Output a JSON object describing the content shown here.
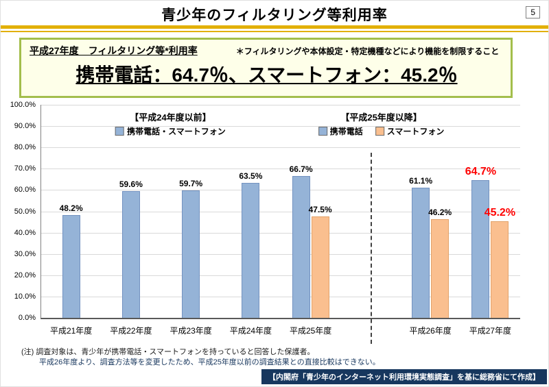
{
  "page": {
    "title": "青少年のフィルタリング等利用率",
    "page_number": "5"
  },
  "highlight_box": {
    "heading": "平成27年度　フィルタリング等*利用率",
    "note": "＊フィルタリングや本体設定・特定機種などにより機能を制限すること",
    "stat": "携帯電話：64.7％、スマートフォン：45.2％"
  },
  "chart_data": {
    "type": "bar",
    "title": "",
    "xlabel": "",
    "ylabel": "",
    "ylim": [
      0,
      100
    ],
    "grid": true,
    "y_ticks": [
      "0.0%",
      "10.0%",
      "20.0%",
      "30.0%",
      "40.0%",
      "50.0%",
      "60.0%",
      "70.0%",
      "80.0%",
      "90.0%",
      "100.0%"
    ],
    "categories": [
      "平成21年度",
      "平成22年度",
      "平成23年度",
      "平成24年度",
      "平成25年度",
      "平成26年度",
      "平成27年度"
    ],
    "series": [
      {
        "name": "携帯電話",
        "color": "#95B3D7",
        "border": "#7392C0",
        "values": [
          48.2,
          59.6,
          59.7,
          63.5,
          66.7,
          61.1,
          64.7
        ]
      },
      {
        "name": "スマートフォン",
        "color": "#FABF8F",
        "border": "#E2A269",
        "values": [
          null,
          null,
          null,
          null,
          47.5,
          46.2,
          45.2
        ]
      }
    ],
    "separator_after_index": 4,
    "highlight_category_index": 6,
    "highlight_color": "#FF0000",
    "legend_groups": [
      {
        "title": "【平成24年度以前】",
        "entries": [
          {
            "label": "携帯電話・スマートフォン",
            "color": "#95B3D7"
          }
        ]
      },
      {
        "title": "【平成25年度以降】",
        "entries": [
          {
            "label": "携帯電話",
            "color": "#95B3D7"
          },
          {
            "label": "スマートフォン",
            "color": "#FABF8F"
          }
        ]
      }
    ]
  },
  "footnotes": [
    "(注) 調査対象は、青少年が携帯電話・スマートフォンを持っていると回答した保護者。",
    "平成26年度より、調査方法等を変更したため、平成25年度以前の調査結果との直接比較はできない。"
  ],
  "footer": {
    "credit": "【内閣府「青少年のインターネット利用環境実態調査」を基に総務省にて作成】"
  },
  "colors": {
    "accent_gold": "#E2B007",
    "box_border_green": "#A3BE4C",
    "box_background": "#FEFFE9",
    "credit_background": "#17375E",
    "highlight_red": "#FF0000",
    "bar_blue": "#95B3D7",
    "bar_orange": "#FABF8F"
  }
}
